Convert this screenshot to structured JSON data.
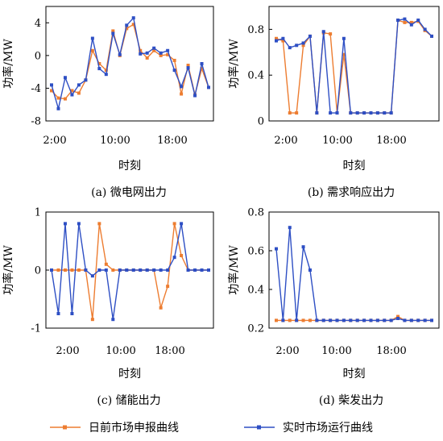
{
  "legend": {
    "dayahead": "日前市场申报曲线",
    "realtime": "实时市场运行曲线",
    "dayahead_color": "#ED7D31",
    "realtime_color": "#2E4FC4"
  },
  "chart_data": [
    {
      "type": "line",
      "caption": "(a) 微电网出力",
      "xlabel": "时刻",
      "ylabel": "功率/MW",
      "x_ticks": [
        "2:00",
        "10:00",
        "18:00"
      ],
      "y_ticks": [
        "4",
        "0",
        "-4",
        "-8"
      ],
      "ylim": [
        -8,
        6
      ],
      "x": [
        0,
        1,
        2,
        3,
        4,
        5,
        6,
        7,
        8,
        9,
        10,
        11,
        12,
        13,
        14,
        15,
        16,
        17,
        18,
        19,
        20,
        21,
        22,
        23
      ],
      "series": [
        {
          "key": "dayahead",
          "values": [
            -4.3,
            -5.2,
            -5.3,
            -4.3,
            -4.6,
            -3,
            0.6,
            -1,
            -1.8,
            3,
            0,
            3.3,
            3.8,
            0.6,
            -0.3,
            0.6,
            0,
            0.1,
            -0.6,
            -4.7,
            -1.2,
            -4.8,
            -1.6,
            -3.9
          ]
        },
        {
          "key": "realtime",
          "values": [
            -3.6,
            -6.5,
            -2.7,
            -4.8,
            -3.6,
            -3,
            2.1,
            -1.6,
            -2.3,
            2.7,
            0.1,
            3.7,
            4.6,
            0.2,
            0.3,
            0.9,
            0.3,
            0.6,
            -1.8,
            -3.8,
            -1.5,
            -4.9,
            -1,
            -3.9
          ]
        }
      ]
    },
    {
      "type": "line",
      "caption": "(b) 需求响应出力",
      "xlabel": "时刻",
      "ylabel": "功率/MW",
      "x_ticks": [
        "2:00",
        "10:00",
        "18:00"
      ],
      "y_ticks": [
        "0.8",
        "0.4",
        "0"
      ],
      "ylim": [
        0,
        1.0
      ],
      "x": [
        0,
        1,
        2,
        3,
        4,
        5,
        6,
        7,
        8,
        9,
        10,
        11,
        12,
        13,
        14,
        15,
        16,
        17,
        18,
        19,
        20,
        21,
        22,
        23
      ],
      "series": [
        {
          "key": "dayahead",
          "values": [
            0.72,
            0.7,
            0.07,
            0.07,
            0.66,
            0.74,
            0.07,
            0.77,
            0.76,
            0.07,
            0.58,
            0.07,
            0.07,
            0.07,
            0.07,
            0.07,
            0.07,
            0.07,
            0.88,
            0.86,
            0.86,
            0.87,
            0.79,
            0.74
          ]
        },
        {
          "key": "realtime",
          "values": [
            0.7,
            0.72,
            0.64,
            0.66,
            0.68,
            0.74,
            0.07,
            0.78,
            0.07,
            0.07,
            0.72,
            0.07,
            0.07,
            0.07,
            0.07,
            0.07,
            0.07,
            0.07,
            0.88,
            0.89,
            0.84,
            0.88,
            0.8,
            0.74
          ]
        }
      ]
    },
    {
      "type": "line",
      "caption": "(c) 储能出力",
      "xlabel": "时刻",
      "ylabel": "功率/MW",
      "x_ticks": [
        "2:00",
        "10:00",
        "18:00"
      ],
      "y_ticks": [
        "1",
        "0",
        "-1"
      ],
      "ylim": [
        -1,
        1
      ],
      "x": [
        0,
        1,
        2,
        3,
        4,
        5,
        6,
        7,
        8,
        9,
        10,
        11,
        12,
        13,
        14,
        15,
        16,
        17,
        18,
        19,
        20,
        21,
        22,
        23
      ],
      "series": [
        {
          "key": "dayahead",
          "values": [
            0,
            0,
            0,
            0,
            0,
            0,
            -0.85,
            0.8,
            0.1,
            0,
            0,
            0,
            0,
            0,
            0,
            0,
            -0.65,
            -0.28,
            0.8,
            0.25,
            0,
            0,
            0,
            0
          ]
        },
        {
          "key": "realtime",
          "values": [
            0,
            -0.75,
            0.8,
            -0.75,
            0.8,
            0,
            -0.1,
            0,
            0,
            -0.85,
            0,
            0,
            0,
            0,
            0,
            0,
            0,
            0,
            0.22,
            0.8,
            0,
            0,
            0,
            0
          ]
        }
      ]
    },
    {
      "type": "line",
      "caption": "(d) 柴发出力",
      "xlabel": "时刻",
      "ylabel": "功率/MW",
      "x_ticks": [
        "2:00",
        "10:00",
        "18:00"
      ],
      "y_ticks": [
        "0.8",
        "0.6",
        "0.4",
        "0.2"
      ],
      "ylim": [
        0.2,
        0.8
      ],
      "x": [
        0,
        1,
        2,
        3,
        4,
        5,
        6,
        7,
        8,
        9,
        10,
        11,
        12,
        13,
        14,
        15,
        16,
        17,
        18,
        19,
        20,
        21,
        22,
        23
      ],
      "series": [
        {
          "key": "dayahead",
          "values": [
            0.24,
            0.24,
            0.24,
            0.24,
            0.24,
            0.24,
            0.24,
            0.24,
            0.24,
            0.24,
            0.24,
            0.24,
            0.24,
            0.24,
            0.24,
            0.24,
            0.24,
            0.24,
            0.26,
            0.24,
            0.24,
            0.24,
            0.24,
            0.24
          ]
        },
        {
          "key": "realtime",
          "values": [
            0.61,
            0.24,
            0.72,
            0.24,
            0.62,
            0.5,
            0.24,
            0.24,
            0.24,
            0.24,
            0.24,
            0.24,
            0.24,
            0.24,
            0.24,
            0.24,
            0.24,
            0.24,
            0.25,
            0.24,
            0.24,
            0.24,
            0.24,
            0.24
          ]
        }
      ]
    }
  ]
}
